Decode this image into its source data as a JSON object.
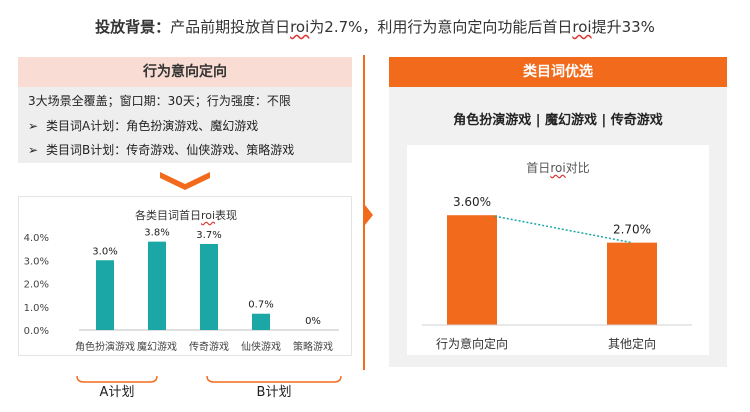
{
  "headline": {
    "label": "投放背景：",
    "before_roi": "产品前期投放首日",
    "roi_word": "roi",
    "middle": "为2.7%，利用行为意向定向功能后首日",
    "roi_word_2": "roi",
    "after": "提升33%"
  },
  "left_panel": {
    "header": "行为意向定向",
    "lines": [
      {
        "bullet": "",
        "text": "3大场景全覆盖；窗口期：30天；行为强度：不限"
      },
      {
        "bullet": "➢",
        "text": "类目词A计划：角色扮演游戏、魔幻游戏"
      },
      {
        "bullet": "➢",
        "text": "类目词B计划：传奇游戏、仙侠游戏、策略游戏"
      }
    ]
  },
  "left_chart": {
    "title_before": "各类目词首日",
    "title_roi": "roi",
    "title_after": "表现",
    "plan_a": "A计划",
    "plan_b": "B计划"
  },
  "right_panel": {
    "header": "类目词优选",
    "subtitle": "角色扮演游戏 | 魔幻游戏 | 传奇游戏",
    "chart_title_before": "首日",
    "chart_title_roi": "roi",
    "chart_title_after": "对比"
  },
  "colors": {
    "accent_orange": "#f26b1d",
    "teal": "#1aa7a6",
    "header_pink": "#f9dcd3"
  },
  "chart_data": [
    {
      "type": "bar",
      "categories": [
        "角色扮演游戏",
        "魔幻游戏",
        "传奇游戏",
        "仙侠游戏",
        "策略游戏"
      ],
      "values": [
        3.0,
        3.8,
        3.7,
        0.7,
        0.0
      ],
      "data_labels": [
        "3.0%",
        "3.8%",
        "3.7%",
        "0.7%",
        "0%"
      ],
      "y_ticks": [
        "0.0%",
        "1.0%",
        "2.0%",
        "3.0%",
        "4.0%"
      ],
      "ylim": [
        0,
        4.0
      ],
      "grid": false
    },
    {
      "type": "bar",
      "categories": [
        "行为意向定向",
        "其他定向"
      ],
      "values": [
        3.6,
        2.7
      ],
      "data_labels": [
        "3.60%",
        "2.70%"
      ],
      "trend_line": true,
      "ylim": [
        0,
        4.0
      ],
      "grid": false
    }
  ]
}
